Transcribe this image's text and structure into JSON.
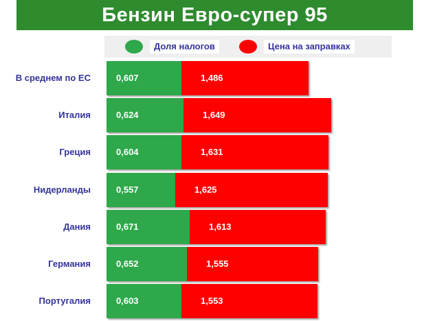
{
  "chart_data": {
    "type": "bar",
    "title": "Бензин  Евро-супер 95",
    "legend": [
      {
        "label": "Доля налогов",
        "color": "#2ea84a"
      },
      {
        "label": "Цена на заправках",
        "color": "#ff0000"
      }
    ],
    "legend_placement": "top",
    "categories": [
      "В среднем по ЕС",
      "Италия",
      "Греция",
      "Нидерланды",
      "Дания",
      "Германия",
      "Португалия"
    ],
    "series": [
      {
        "name": "Доля налогов",
        "values": [
          0.607,
          0.624,
          0.604,
          0.557,
          0.671,
          0.652,
          0.603
        ],
        "labels": [
          "0,607",
          "0,624",
          "0,604",
          "0,557",
          "0,671",
          "0,652",
          "0,603"
        ]
      },
      {
        "name": "Цена на заправках",
        "values": [
          1.486,
          1.649,
          1.631,
          1.625,
          1.613,
          1.555,
          1.553
        ],
        "labels": [
          "1,486",
          "1,649",
          "1,631",
          "1,625",
          "1,613",
          "1,555",
          "1,553"
        ]
      }
    ],
    "orientation": "horizontal",
    "grid": false
  }
}
